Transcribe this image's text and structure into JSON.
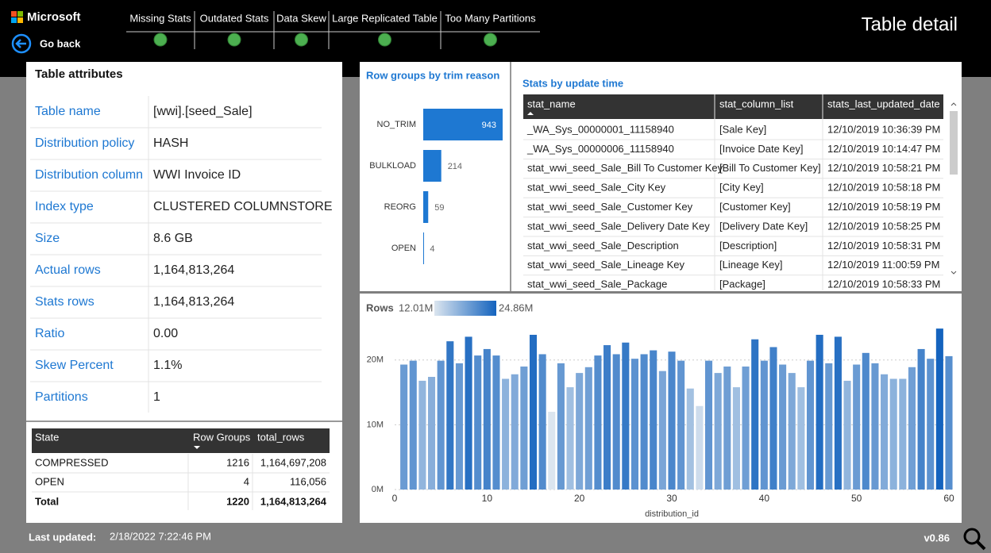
{
  "header": {
    "logo": "Microsoft",
    "back": "Go back",
    "title": "Table detail",
    "tabs": [
      "Missing Stats",
      "Outdated Stats",
      "Data Skew",
      "Large Replicated Table",
      "Too Many Partitions"
    ]
  },
  "attributes": {
    "title": "Table attributes",
    "rows": [
      [
        "Table name",
        "[wwi].[seed_Sale]"
      ],
      [
        "Distribution policy",
        "HASH"
      ],
      [
        "Distribution column",
        "WWI Invoice ID"
      ],
      [
        "Index type",
        "CLUSTERED COLUMNSTORE"
      ],
      [
        "Size",
        "8.6 GB"
      ],
      [
        "Actual rows",
        "1,164,813,264"
      ],
      [
        "Stats rows",
        "1,164,813,264"
      ],
      [
        "Ratio",
        "0.00"
      ],
      [
        "Skew Percent",
        "1.1%"
      ],
      [
        "Partitions",
        "1"
      ]
    ]
  },
  "state_table": {
    "columns": [
      "State",
      "Row Groups",
      "total_rows"
    ],
    "rows": [
      [
        "COMPRESSED",
        "1216",
        "1,164,697,208"
      ],
      [
        "OPEN",
        "4",
        "116,056"
      ]
    ],
    "total": [
      "Total",
      "1220",
      "1,164,813,264"
    ]
  },
  "stats_table": {
    "title": "Stats by update time",
    "columns": [
      "stat_name",
      "stat_column_list",
      "stats_last_updated_date"
    ],
    "rows": [
      [
        "_WA_Sys_00000001_11158940",
        "[Sale Key]",
        "12/10/2019 10:36:39 PM"
      ],
      [
        "_WA_Sys_00000006_11158940",
        "[Invoice Date Key]",
        "12/10/2019 10:14:47 PM"
      ],
      [
        "stat_wwi_seed_Sale_Bill To Customer Key",
        "[Bill To Customer Key]",
        "12/10/2019 10:58:21 PM"
      ],
      [
        "stat_wwi_seed_Sale_City Key",
        "[City Key]",
        "12/10/2019 10:58:18 PM"
      ],
      [
        "stat_wwi_seed_Sale_Customer Key",
        "[Customer Key]",
        "12/10/2019 10:58:19 PM"
      ],
      [
        "stat_wwi_seed_Sale_Delivery Date Key",
        "[Delivery Date Key]",
        "12/10/2019 10:58:25 PM"
      ],
      [
        "stat_wwi_seed_Sale_Description",
        "[Description]",
        "12/10/2019 10:58:31 PM"
      ],
      [
        "stat_wwi_seed_Sale_Lineage Key",
        "[Lineage Key]",
        "12/10/2019 11:00:59 PM"
      ],
      [
        "stat_wwi_seed_Sale_Package",
        "[Package]",
        "12/10/2019 10:58:33 PM"
      ]
    ]
  },
  "footer": {
    "label": "Last updated:",
    "date": "2/18/2022 7:22:46 PM",
    "version": "v0.86"
  },
  "chart_data": [
    {
      "type": "bar",
      "orientation": "horizontal",
      "title": "Row groups by trim reason",
      "categories": [
        "NO_TRIM",
        "BULKLOAD",
        "REORG",
        "OPEN"
      ],
      "values": [
        943,
        214,
        59,
        4
      ],
      "color": "#1e78d2",
      "xlim": [
        0,
        943
      ]
    },
    {
      "type": "bar",
      "title": "Rows",
      "x_label": "distribution_id",
      "x": [
        1,
        2,
        3,
        4,
        5,
        6,
        7,
        8,
        9,
        10,
        11,
        12,
        13,
        14,
        15,
        16,
        17,
        18,
        19,
        20,
        21,
        22,
        23,
        24,
        25,
        26,
        27,
        28,
        29,
        30,
        31,
        32,
        33,
        34,
        35,
        36,
        37,
        38,
        39,
        40,
        41,
        42,
        43,
        44,
        45,
        46,
        47,
        48,
        49,
        50,
        51,
        52,
        53,
        54,
        55,
        56,
        57,
        58,
        59,
        60
      ],
      "values": [
        19.3,
        19.9,
        16.8,
        17.4,
        19.9,
        22.9,
        19.5,
        23.6,
        20.7,
        21.7,
        20.7,
        17.1,
        17.8,
        19.0,
        23.9,
        20.9,
        12.01,
        19.5,
        15.8,
        18.0,
        18.9,
        20.7,
        22.3,
        20.9,
        22.7,
        20.2,
        20.9,
        21.5,
        18.3,
        21.3,
        19.9,
        15.6,
        12.9,
        19.9,
        18.0,
        19.0,
        15.8,
        19.0,
        23.2,
        19.9,
        22.0,
        19.3,
        18.0,
        15.8,
        19.9,
        23.9,
        19.5,
        23.6,
        16.8,
        19.3,
        21.1,
        19.5,
        17.8,
        17.1,
        17.1,
        18.9,
        21.7,
        20.2,
        24.86,
        20.6
      ],
      "xlim": [
        0,
        60
      ],
      "ylim": [
        0,
        25
      ],
      "xticks": [
        0,
        10,
        20,
        30,
        40,
        50,
        60
      ],
      "yticks": [
        {
          "value": 0,
          "label": "0M"
        },
        {
          "value": 10,
          "label": "10M"
        },
        {
          "value": 20,
          "label": "20M"
        }
      ],
      "grid": true,
      "color_scale": {
        "min": {
          "value": 12.01,
          "label": "12.01M"
        },
        "max": {
          "value": 24.86,
          "label": "24.86M"
        },
        "colors": [
          "#dbe5ef",
          "#1463be"
        ]
      }
    }
  ]
}
